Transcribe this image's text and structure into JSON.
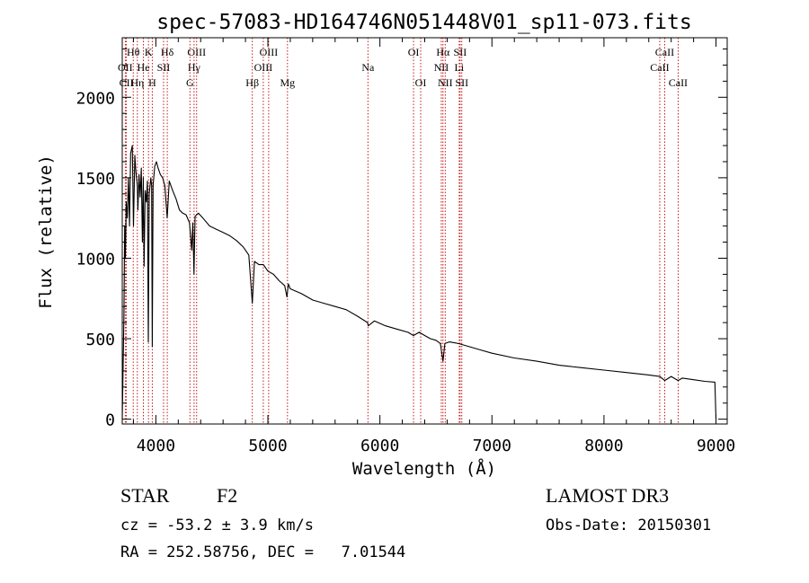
{
  "chart_data": {
    "type": "line",
    "title": "spec-57083-HD164746N051448V01_sp11-073.fits",
    "xlabel": "Wavelength (Å)",
    "ylabel": "Flux (relative)",
    "xlim": [
      3700,
      9100
    ],
    "ylim": [
      -30,
      2370
    ],
    "x_ticks": [
      4000,
      5000,
      6000,
      7000,
      8000,
      9000
    ],
    "y_ticks": [
      0,
      500,
      1000,
      1500,
      2000
    ],
    "series": [
      {
        "name": "spectrum",
        "x": [
          3700,
          3715,
          3722,
          3728,
          3735,
          3745,
          3755,
          3765,
          3775,
          3790,
          3800,
          3812,
          3820,
          3835,
          3840,
          3850,
          3860,
          3870,
          3880,
          3888,
          3895,
          3905,
          3915,
          3925,
          3933,
          3941,
          3955,
          3962,
          3968,
          3975,
          3990,
          4005,
          4020,
          4040,
          4060,
          4080,
          4101,
          4120,
          4150,
          4180,
          4210,
          4240,
          4270,
          4300,
          4320,
          4330,
          4340,
          4350,
          4380,
          4420,
          4480,
          4540,
          4600,
          4660,
          4720,
          4780,
          4830,
          4861,
          4880,
          4920,
          4960,
          5000,
          5050,
          5100,
          5150,
          5170,
          5183,
          5200,
          5300,
          5400,
          5500,
          5600,
          5700,
          5800,
          5890,
          5896,
          5950,
          6050,
          6150,
          6250,
          6300,
          6350,
          6400,
          6450,
          6500,
          6540,
          6563,
          6580,
          6620,
          6700,
          6800,
          6900,
          7000,
          7200,
          7400,
          7600,
          7800,
          8000,
          8200,
          8400,
          8498,
          8542,
          8600,
          8662,
          8700,
          8800,
          8900,
          8990,
          9000
        ],
        "values": [
          0,
          650,
          1200,
          1000,
          1350,
          1250,
          1500,
          1200,
          1650,
          1700,
          1200,
          1640,
          1550,
          1450,
          1300,
          1520,
          1380,
          1560,
          1100,
          1500,
          950,
          1420,
          1350,
          1480,
          480,
          1400,
          1500,
          1450,
          450,
          1450,
          1570,
          1600,
          1560,
          1520,
          1500,
          1450,
          1250,
          1480,
          1420,
          1370,
          1300,
          1280,
          1270,
          1220,
          1050,
          1220,
          900,
          1260,
          1280,
          1250,
          1200,
          1180,
          1160,
          1140,
          1110,
          1070,
          1020,
          720,
          980,
          960,
          960,
          920,
          900,
          860,
          830,
          760,
          840,
          810,
          780,
          740,
          720,
          700,
          680,
          640,
          600,
          580,
          610,
          580,
          560,
          540,
          520,
          540,
          520,
          500,
          490,
          470,
          360,
          470,
          480,
          470,
          450,
          430,
          410,
          380,
          360,
          335,
          320,
          305,
          290,
          275,
          265,
          240,
          265,
          240,
          255,
          245,
          235,
          230,
          0
        ]
      }
    ],
    "lines": [
      {
        "label": "Hθ",
        "x": 3798,
        "row": 1
      },
      {
        "label": "OII",
        "x": 3727,
        "row": 2
      },
      {
        "label": "CII",
        "x": 3737,
        "row": 3
      },
      {
        "label": "He",
        "x": 3889,
        "row": 2
      },
      {
        "label": "Hη",
        "x": 3835,
        "row": 3
      },
      {
        "label": "K",
        "x": 3934,
        "row": 1
      },
      {
        "label": "H",
        "x": 3968,
        "row": 3
      },
      {
        "label": "SII",
        "x": 4069,
        "row": 2
      },
      {
        "label": "Hδ",
        "x": 4102,
        "row": 1
      },
      {
        "label": "OIII",
        "x": 4364,
        "row": 1
      },
      {
        "label": "Hγ",
        "x": 4341,
        "row": 2
      },
      {
        "label": "G",
        "x": 4304,
        "row": 3
      },
      {
        "label": "Hβ",
        "x": 4861,
        "row": 3
      },
      {
        "label": "OIII",
        "x": 4959,
        "row": 2
      },
      {
        "label": "OIII",
        "x": 5007,
        "row": 1
      },
      {
        "label": "Mg",
        "x": 5175,
        "row": 3
      },
      {
        "label": "Na",
        "x": 5893,
        "row": 2
      },
      {
        "label": "OI",
        "x": 6300,
        "row": 1
      },
      {
        "label": "OI",
        "x": 6364,
        "row": 3
      },
      {
        "label": "Hα",
        "x": 6563,
        "row": 1
      },
      {
        "label": "NII",
        "x": 6548,
        "row": 2
      },
      {
        "label": "NII",
        "x": 6583,
        "row": 3
      },
      {
        "label": "SII",
        "x": 6716,
        "row": 1
      },
      {
        "label": "Li",
        "x": 6708,
        "row": 2
      },
      {
        "label": "SII",
        "x": 6731,
        "row": 3
      },
      {
        "label": "CaII",
        "x": 8542,
        "row": 1
      },
      {
        "label": "CaII",
        "x": 8498,
        "row": 2
      },
      {
        "label": "CaII",
        "x": 8662,
        "row": 3
      }
    ]
  },
  "info": {
    "class": "STAR",
    "subclass": "F2",
    "survey": "LAMOST DR3",
    "cz": "cz = -53.2 ± 3.9 km/s",
    "obs_date": "Obs-Date: 20150301",
    "coords": "RA = 252.58756, DEC =   7.01544"
  }
}
